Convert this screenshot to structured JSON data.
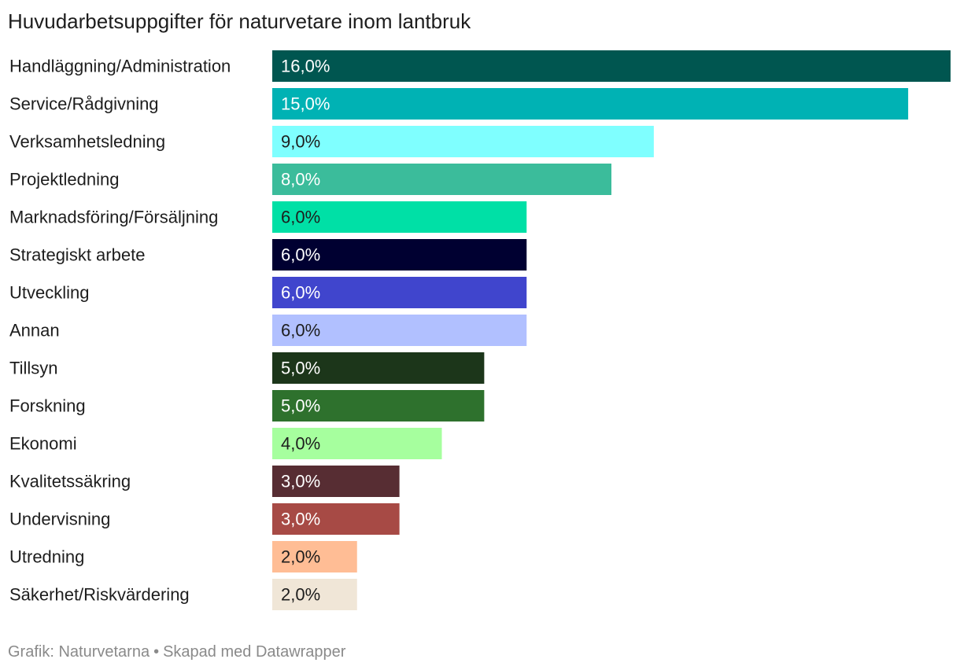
{
  "title": "Huvudarbetsuppgifter för naturvetare inom lantbruk",
  "footer": {
    "source": "Grafik: Naturvetarna",
    "separator": "•",
    "credit": "Skapad med Datawrapper"
  },
  "chart_data": {
    "type": "bar",
    "orientation": "horizontal",
    "title": "Huvudarbetsuppgifter för naturvetare inom lantbruk",
    "categories": [
      "Handläggning/Administration",
      "Service/Rådgivning",
      "Verksamhetsledning",
      "Projektledning",
      "Marknadsföring/Försäljning",
      "Strategiskt arbete",
      "Utveckling",
      "Annan",
      "Tillsyn",
      "Forskning",
      "Ekonomi",
      "Kvalitetssäkring",
      "Undervisning",
      "Utredning",
      "Säkerhet/Riskvärdering"
    ],
    "values": [
      16,
      15,
      9,
      8,
      6,
      6,
      6,
      6,
      5,
      5,
      4,
      3,
      3,
      2,
      2
    ],
    "value_labels": [
      "16,0%",
      "15,0%",
      "9,0%",
      "8,0%",
      "6,0%",
      "6,0%",
      "6,0%",
      "6,0%",
      "5,0%",
      "5,0%",
      "4,0%",
      "3,0%",
      "3,0%",
      "2,0%",
      "2,0%"
    ],
    "colors": [
      "#005650",
      "#00b2b4",
      "#7fffff",
      "#3bbc9b",
      "#00e0a6",
      "#000031",
      "#4045cd",
      "#b1c0ff",
      "#1c361a",
      "#2e712d",
      "#a6ff9e",
      "#572d33",
      "#a74a45",
      "#ffbd95",
      "#f0e6d7"
    ],
    "label_colors": [
      "#ffffff",
      "#ffffff",
      "#1d1d1d",
      "#ffffff",
      "#1d1d1d",
      "#ffffff",
      "#ffffff",
      "#1d1d1d",
      "#ffffff",
      "#ffffff",
      "#1d1d1d",
      "#ffffff",
      "#ffffff",
      "#1d1d1d",
      "#1d1d1d"
    ],
    "xlim": [
      0,
      16
    ],
    "unit": "%",
    "grid": false,
    "legend": "none"
  }
}
